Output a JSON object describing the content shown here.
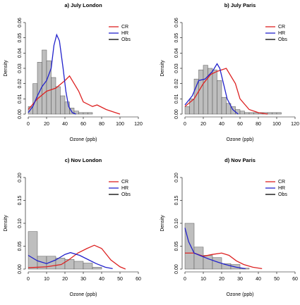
{
  "chart_data": [
    {
      "type": "histogram",
      "title": "a) July London",
      "x_label": "Ozone (ppb)",
      "y_label": "Density",
      "xlim": [
        0,
        120
      ],
      "xticks": [
        0,
        20,
        40,
        60,
        80,
        100,
        120
      ],
      "ylim": [
        0,
        0.06
      ],
      "yticks": [
        {
          "value": 0,
          "label": "0.00"
        },
        {
          "value": 0.01,
          "label": "0.01"
        },
        {
          "value": 0.02,
          "label": "0.02"
        },
        {
          "value": 0.03,
          "label": "0.03"
        },
        {
          "value": 0.04,
          "label": "0.04"
        },
        {
          "value": 0.05,
          "label": "0.05"
        },
        {
          "value": 0.06,
          "label": "0.06"
        }
      ],
      "legend": "top-right",
      "histogram": {
        "name": "Obs",
        "color": "#bebebe",
        "legend_color": "#000000",
        "bins": [
          0,
          5,
          10,
          15,
          20,
          25,
          30,
          35,
          40,
          45,
          50,
          55,
          60,
          65,
          70
        ],
        "counts": [
          0.005,
          0.02,
          0.034,
          0.042,
          0.035,
          0.024,
          0.018,
          0.012,
          0.008,
          0.004,
          0.002,
          0.001,
          0.001,
          0.001
        ]
      },
      "series": [
        {
          "name": "CR",
          "color": "#dd2222",
          "x": [
            0,
            10,
            20,
            30,
            40,
            45,
            55,
            60,
            70,
            75,
            85,
            95,
            100
          ],
          "values": [
            0.003,
            0.01,
            0.015,
            0.017,
            0.022,
            0.025,
            0.015,
            0.008,
            0.005,
            0.006,
            0.003,
            0.001,
            0
          ]
        },
        {
          "name": "HR",
          "color": "#2222cc",
          "x": [
            0,
            5,
            10,
            15,
            20,
            25,
            28,
            31,
            34,
            38,
            41,
            44,
            48,
            52
          ],
          "values": [
            0.001,
            0.005,
            0.012,
            0.018,
            0.022,
            0.03,
            0.045,
            0.052,
            0.048,
            0.03,
            0.015,
            0.005,
            0.001,
            0
          ]
        }
      ]
    },
    {
      "type": "histogram",
      "title": "b) July Paris",
      "x_label": "Ozone (ppb)",
      "y_label": "Density",
      "xlim": [
        0,
        120
      ],
      "xticks": [
        0,
        20,
        40,
        60,
        80,
        100,
        120
      ],
      "ylim": [
        0,
        0.06
      ],
      "yticks": [
        {
          "value": 0,
          "label": "0.00"
        },
        {
          "value": 0.01,
          "label": "0.01"
        },
        {
          "value": 0.02,
          "label": "0.02"
        },
        {
          "value": 0.03,
          "label": "0.03"
        },
        {
          "value": 0.04,
          "label": "0.04"
        },
        {
          "value": 0.05,
          "label": "0.05"
        },
        {
          "value": 0.06,
          "label": "0.06"
        }
      ],
      "legend": "top-right",
      "histogram": {
        "name": "Obs",
        "color": "#bebebe",
        "legend_color": "#000000",
        "bins": [
          0,
          5,
          10,
          15,
          20,
          25,
          30,
          35,
          40,
          45,
          50,
          55,
          60,
          65,
          70,
          75,
          80,
          85,
          90,
          95,
          100,
          105
        ],
        "counts": [
          0.005,
          0.01,
          0.023,
          0.029,
          0.032,
          0.03,
          0.029,
          0.022,
          0.011,
          0.007,
          0.005,
          0.003,
          0.002,
          0.001,
          0.001,
          0.001,
          0.001,
          0.001,
          0.001,
          0.001,
          0.001
        ]
      },
      "series": [
        {
          "name": "CR",
          "color": "#dd2222",
          "x": [
            0,
            10,
            20,
            28,
            35,
            45,
            55,
            60,
            70,
            80,
            90
          ],
          "values": [
            0.005,
            0.01,
            0.02,
            0.026,
            0.028,
            0.03,
            0.02,
            0.01,
            0.003,
            0.001,
            0
          ]
        },
        {
          "name": "HR",
          "color": "#2222cc",
          "x": [
            0,
            8,
            15,
            22,
            30,
            35,
            38,
            42,
            46,
            52,
            58
          ],
          "values": [
            0.006,
            0.012,
            0.022,
            0.023,
            0.028,
            0.033,
            0.03,
            0.02,
            0.01,
            0.003,
            0
          ]
        }
      ]
    },
    {
      "type": "histogram",
      "title": "c) Nov London",
      "x_label": "Ozone (ppb)",
      "y_label": "Density",
      "xlim": [
        0,
        60
      ],
      "xticks": [
        0,
        10,
        20,
        30,
        40,
        50,
        60
      ],
      "ylim": [
        0,
        0.2
      ],
      "yticks": [
        {
          "value": 0,
          "label": "0.00"
        },
        {
          "value": 0.05,
          "label": "0.05"
        },
        {
          "value": 0.1,
          "label": "0.10"
        },
        {
          "value": 0.15,
          "label": "0.15"
        },
        {
          "value": 0.2,
          "label": "0.20"
        }
      ],
      "legend": "top-right",
      "histogram": {
        "name": "Obs",
        "color": "#bebebe",
        "legend_color": "#000000",
        "bins": [
          0,
          5,
          10,
          15,
          20,
          25,
          30,
          35,
          40
        ],
        "counts": [
          0.082,
          0.028,
          0.028,
          0.024,
          0.021,
          0.017,
          0.013,
          0.004
        ]
      },
      "series": [
        {
          "name": "CR",
          "color": "#dd2222",
          "x": [
            0,
            10,
            18,
            22,
            27,
            32,
            36,
            40,
            45,
            50,
            53
          ],
          "values": [
            0.003,
            0.005,
            0.01,
            0.02,
            0.035,
            0.045,
            0.052,
            0.045,
            0.02,
            0.005,
            0
          ]
        },
        {
          "name": "HR",
          "color": "#2222cc",
          "x": [
            0,
            5,
            10,
            15,
            20,
            23,
            28,
            33,
            37,
            42,
            46
          ],
          "values": [
            0.03,
            0.018,
            0.012,
            0.02,
            0.032,
            0.036,
            0.03,
            0.02,
            0.012,
            0.004,
            0.001
          ]
        }
      ]
    },
    {
      "type": "histogram",
      "title": "d) Nov Paris",
      "x_label": "Ozone (ppb)",
      "y_label": "Density",
      "xlim": [
        0,
        60
      ],
      "xticks": [
        0,
        10,
        20,
        30,
        40,
        50,
        60
      ],
      "ylim": [
        0,
        0.2
      ],
      "yticks": [
        {
          "value": 0,
          "label": "0.00"
        },
        {
          "value": 0.05,
          "label": "0.05"
        },
        {
          "value": 0.1,
          "label": "0.10"
        },
        {
          "value": 0.15,
          "label": "0.15"
        },
        {
          "value": 0.2,
          "label": "0.20"
        }
      ],
      "legend": "top-right",
      "histogram": {
        "name": "Obs",
        "color": "#bebebe",
        "legend_color": "#000000",
        "bins": [
          0,
          5,
          10,
          15,
          20,
          25,
          30,
          35
        ],
        "counts": [
          0.1,
          0.048,
          0.03,
          0.025,
          0.012,
          0.01,
          0.002
        ]
      },
      "series": [
        {
          "name": "CR",
          "color": "#dd2222",
          "x": [
            0,
            5,
            10,
            15,
            20,
            24,
            28,
            32,
            37,
            42
          ],
          "values": [
            0.035,
            0.035,
            0.028,
            0.032,
            0.035,
            0.03,
            0.018,
            0.01,
            0.004,
            0.001
          ]
        },
        {
          "name": "HR",
          "color": "#2222cc",
          "x": [
            0,
            2,
            5,
            8,
            13,
            18,
            22,
            28,
            33
          ],
          "values": [
            0.09,
            0.06,
            0.035,
            0.03,
            0.022,
            0.015,
            0.01,
            0.004,
            0.001
          ]
        }
      ]
    }
  ]
}
